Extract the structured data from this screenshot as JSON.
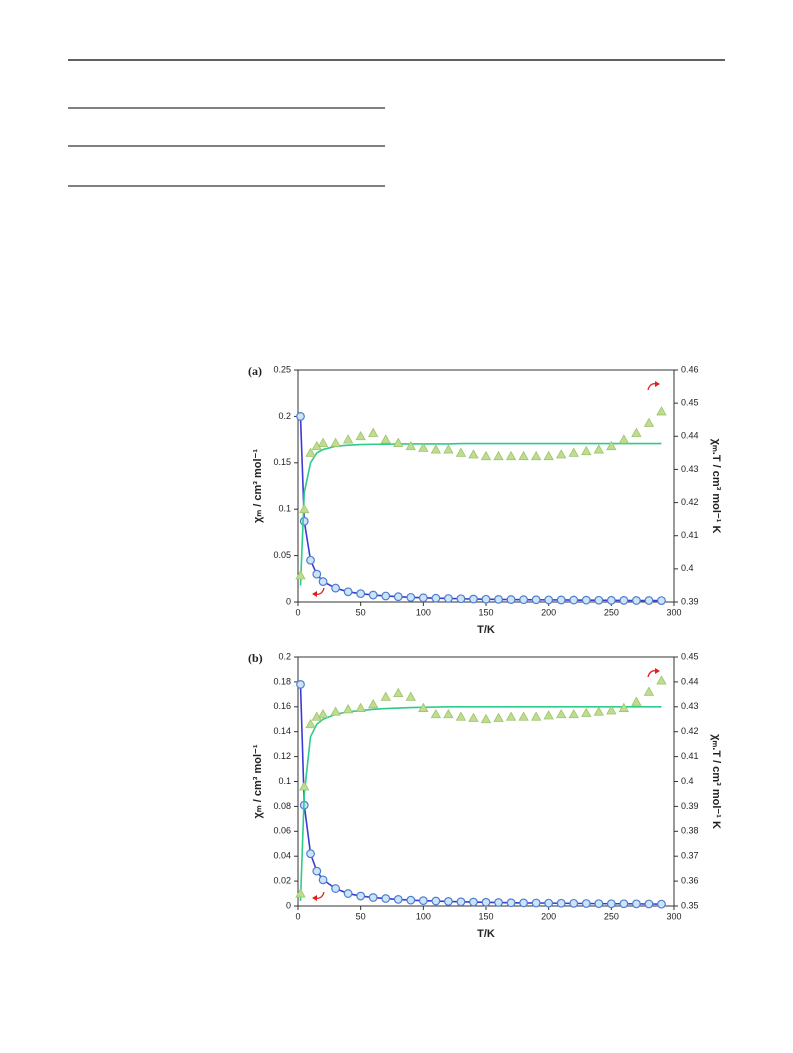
{
  "chart_data": [
    {
      "type": "combo",
      "panel_label": "(a)",
      "xlabel": "T/K",
      "ylabel": "χₘ / cm³ mol⁻¹",
      "y2label": "χₘ.T / cm³ mol⁻¹ K",
      "x": [
        2,
        5,
        10,
        15,
        20,
        30,
        40,
        50,
        60,
        70,
        80,
        90,
        100,
        110,
        120,
        130,
        140,
        150,
        160,
        170,
        180,
        190,
        200,
        210,
        220,
        230,
        240,
        250,
        260,
        270,
        280,
        290
      ],
      "xlim": [
        0,
        300
      ],
      "xticks": [
        0,
        50,
        100,
        150,
        200,
        250,
        300
      ],
      "ylim": [
        0,
        0.25
      ],
      "yticks": [
        0,
        0.05,
        0.1,
        0.15,
        0.2,
        0.25
      ],
      "y2lim": [
        0.39,
        0.46
      ],
      "y2ticks": [
        0.39,
        0.4,
        0.41,
        0.42,
        0.43,
        0.44,
        0.45,
        0.46
      ],
      "series": [
        {
          "mark": "line",
          "color": "#3a3ad8",
          "values": [
            0.2,
            0.087,
            0.045,
            0.03,
            0.022,
            0.015,
            0.011,
            0.009,
            0.0075,
            0.0065,
            0.0057,
            0.005,
            0.0045,
            0.0041,
            0.0038,
            0.0035,
            0.0032,
            0.003,
            0.0028,
            0.0026,
            0.0025,
            0.0024,
            0.0023,
            0.0022,
            0.0021,
            0.002,
            0.0019,
            0.0018,
            0.0017,
            0.0016,
            0.0016,
            0.0015
          ]
        },
        {
          "mark": "circle",
          "color": "#4a7fd0",
          "values": [
            0.2,
            0.087,
            0.045,
            0.03,
            0.022,
            0.015,
            0.011,
            0.009,
            0.0075,
            0.0065,
            0.0057,
            0.005,
            0.0045,
            0.0041,
            0.0038,
            0.0035,
            0.0032,
            0.003,
            0.0028,
            0.0026,
            0.0025,
            0.0024,
            0.0023,
            0.0022,
            0.0021,
            0.002,
            0.0019,
            0.0018,
            0.0017,
            0.0016,
            0.0016,
            0.0015
          ]
        },
        {
          "mark": "line",
          "axis": "y2",
          "color": "#2ecc8a",
          "values": [
            0.395,
            0.423,
            0.432,
            0.435,
            0.436,
            0.437,
            0.4373,
            0.4375,
            0.4376,
            0.4376,
            0.4377,
            0.4377,
            0.4377,
            0.4377,
            0.4377,
            0.4378,
            0.4378,
            0.4378,
            0.4378,
            0.4378,
            0.4378,
            0.4378,
            0.4378,
            0.4378,
            0.4378,
            0.4378,
            0.4378,
            0.4378,
            0.4378,
            0.4378,
            0.4378,
            0.4378
          ]
        },
        {
          "mark": "triangle",
          "axis": "y2",
          "color": "#9cc46a",
          "values": [
            0.398,
            0.418,
            0.435,
            0.437,
            0.438,
            0.438,
            0.439,
            0.44,
            0.441,
            0.439,
            0.438,
            0.437,
            0.4365,
            0.436,
            0.436,
            0.435,
            0.4345,
            0.434,
            0.434,
            0.434,
            0.434,
            0.434,
            0.434,
            0.4345,
            0.435,
            0.4355,
            0.436,
            0.437,
            0.439,
            0.441,
            0.444,
            0.4475
          ]
        }
      ]
    },
    {
      "type": "combo",
      "panel_label": "(b)",
      "xlabel": "T/K",
      "ylabel": "χₘ / cm³ mol⁻¹",
      "y2label": "χₘ.T / cm³ mol⁻¹ K",
      "x": [
        2,
        5,
        10,
        15,
        20,
        30,
        40,
        50,
        60,
        70,
        80,
        90,
        100,
        110,
        120,
        130,
        140,
        150,
        160,
        170,
        180,
        190,
        200,
        210,
        220,
        230,
        240,
        250,
        260,
        270,
        280,
        290
      ],
      "xlim": [
        0,
        300
      ],
      "xticks": [
        0,
        50,
        100,
        150,
        200,
        250,
        300
      ],
      "ylim": [
        0,
        0.2
      ],
      "yticks": [
        0,
        0.02,
        0.04,
        0.06,
        0.08,
        0.1,
        0.12,
        0.14,
        0.16,
        0.18,
        0.2
      ],
      "y2lim": [
        0.35,
        0.45
      ],
      "y2ticks": [
        0.35,
        0.36,
        0.37,
        0.38,
        0.39,
        0.4,
        0.41,
        0.42,
        0.43,
        0.44,
        0.45
      ],
      "series": [
        {
          "mark": "line",
          "color": "#3a3ad8",
          "values": [
            0.178,
            0.081,
            0.042,
            0.028,
            0.021,
            0.014,
            0.01,
            0.008,
            0.0068,
            0.006,
            0.0053,
            0.0047,
            0.0043,
            0.004,
            0.0037,
            0.0034,
            0.0032,
            0.003,
            0.0028,
            0.0026,
            0.0025,
            0.0024,
            0.0023,
            0.0022,
            0.0021,
            0.002,
            0.0019,
            0.0018,
            0.0018,
            0.0017,
            0.0016,
            0.0015
          ]
        },
        {
          "mark": "circle",
          "color": "#4a7fd0",
          "values": [
            0.178,
            0.081,
            0.042,
            0.028,
            0.021,
            0.014,
            0.01,
            0.008,
            0.0068,
            0.006,
            0.0053,
            0.0047,
            0.0043,
            0.004,
            0.0037,
            0.0034,
            0.0032,
            0.003,
            0.0028,
            0.0026,
            0.0025,
            0.0024,
            0.0023,
            0.0022,
            0.0021,
            0.002,
            0.0019,
            0.0018,
            0.0018,
            0.0017,
            0.0016,
            0.0015
          ]
        },
        {
          "mark": "line",
          "axis": "y2",
          "color": "#2ecc8a",
          "values": [
            0.352,
            0.395,
            0.418,
            0.423,
            0.425,
            0.427,
            0.428,
            0.4285,
            0.429,
            0.4293,
            0.4295,
            0.4297,
            0.4298,
            0.4299,
            0.43,
            0.43,
            0.43,
            0.43,
            0.43,
            0.43,
            0.43,
            0.43,
            0.43,
            0.43,
            0.43,
            0.43,
            0.43,
            0.43,
            0.43,
            0.43,
            0.43,
            0.43
          ]
        },
        {
          "mark": "triangle",
          "axis": "y2",
          "color": "#9cc46a",
          "values": [
            0.355,
            0.398,
            0.423,
            0.426,
            0.427,
            0.428,
            0.429,
            0.4295,
            0.431,
            0.434,
            0.4355,
            0.434,
            0.4295,
            0.427,
            0.427,
            0.426,
            0.4255,
            0.425,
            0.4255,
            0.426,
            0.426,
            0.426,
            0.4265,
            0.427,
            0.427,
            0.4275,
            0.428,
            0.4285,
            0.4295,
            0.432,
            0.436,
            0.4405
          ]
        }
      ]
    }
  ]
}
